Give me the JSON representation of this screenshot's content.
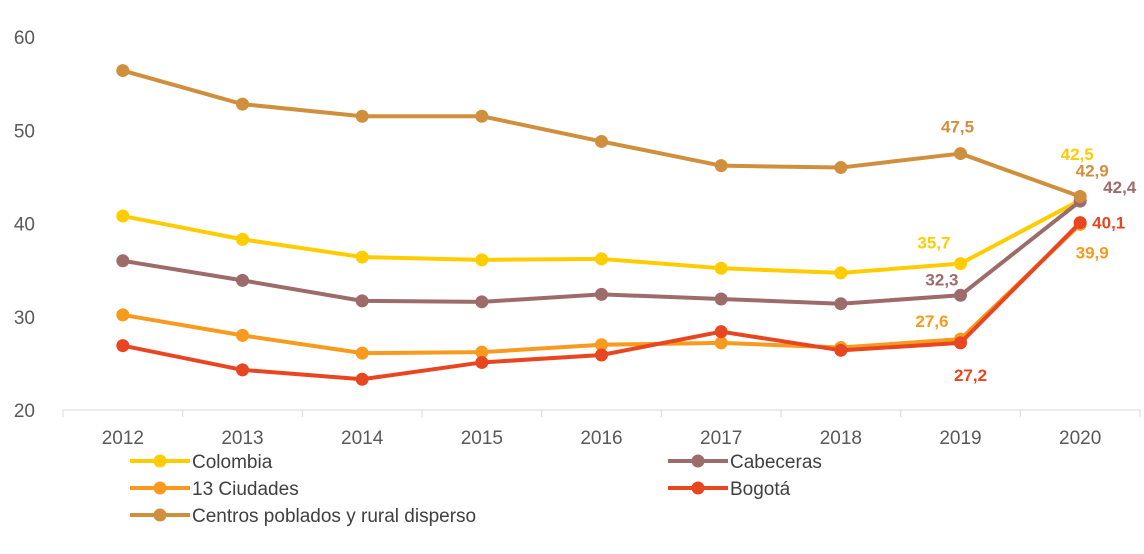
{
  "chart_data": {
    "type": "line",
    "categories": [
      "2012",
      "2013",
      "2014",
      "2015",
      "2016",
      "2017",
      "2018",
      "2019",
      "2020"
    ],
    "ylim": [
      20,
      60
    ],
    "yticks": [
      20,
      30,
      40,
      50,
      60
    ],
    "grid": false,
    "legend_position": "bottom",
    "series": [
      {
        "name": "Colombia",
        "color": "#FFCC00",
        "values": [
          40.8,
          38.3,
          36.4,
          36.1,
          36.2,
          35.2,
          34.7,
          35.7,
          42.5
        ]
      },
      {
        "name": "Cabeceras",
        "color": "#9E6B6B",
        "values": [
          36.0,
          33.9,
          31.7,
          31.6,
          32.4,
          31.9,
          31.4,
          32.3,
          42.4
        ]
      },
      {
        "name": "13 Ciudades",
        "color": "#F79A1E",
        "values": [
          30.2,
          28.0,
          26.1,
          26.2,
          27.0,
          27.2,
          26.7,
          27.6,
          39.9
        ]
      },
      {
        "name": "Bogotá",
        "color": "#E84621",
        "values": [
          26.9,
          24.3,
          23.3,
          25.1,
          25.9,
          28.4,
          26.4,
          27.2,
          40.1
        ]
      },
      {
        "name": "Centros poblados y rural disperso",
        "color": "#D08F3D",
        "values": [
          56.4,
          52.8,
          51.5,
          51.5,
          48.8,
          46.2,
          46.0,
          47.5,
          42.9
        ]
      }
    ],
    "data_labels": [
      {
        "series": 0,
        "index": 7,
        "text": "35,7"
      },
      {
        "series": 0,
        "index": 8,
        "text": "42,5"
      },
      {
        "series": 1,
        "index": 7,
        "text": "32,3"
      },
      {
        "series": 1,
        "index": 8,
        "text": "42,4"
      },
      {
        "series": 2,
        "index": 7,
        "text": "27,6"
      },
      {
        "series": 2,
        "index": 8,
        "text": "39,9"
      },
      {
        "series": 3,
        "index": 7,
        "text": "27,2"
      },
      {
        "series": 3,
        "index": 8,
        "text": "40,1"
      },
      {
        "series": 4,
        "index": 7,
        "text": "47,5"
      },
      {
        "series": 4,
        "index": 8,
        "text": "42,9"
      }
    ]
  }
}
